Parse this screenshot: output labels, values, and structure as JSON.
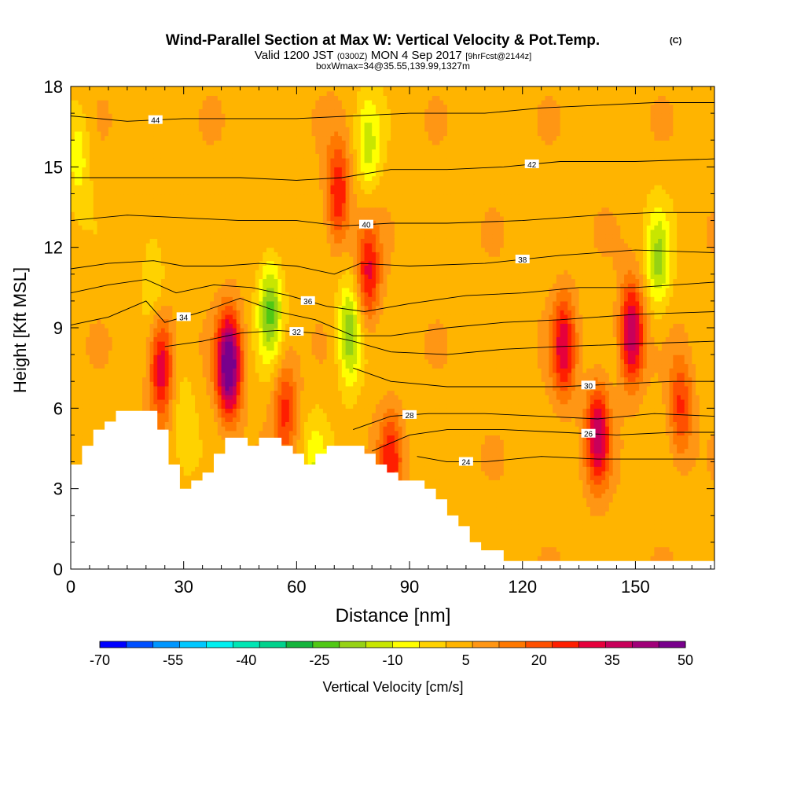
{
  "chart_data": {
    "type": "heatmap",
    "title": "Wind-Parallel Section at Max W: Vertical Velocity & Pot.Temp.",
    "title_mark": "(C)",
    "subtitle": {
      "prefix": "Valid 1200 JST",
      "utc": "(0300Z)",
      "day": "MON 4 Sep 2017",
      "run": "[9hrFcst@2144z]"
    },
    "subtitle2": "boxWmax=34@35.55,139.99,1327m",
    "xlabel": "Distance [nm]",
    "ylabel": "Height [Kft MSL]",
    "xlim": [
      0,
      171
    ],
    "ylim": [
      0,
      18
    ],
    "x_ticks": [
      "0",
      "30",
      "60",
      "90",
      "120",
      "150"
    ],
    "y_ticks": [
      "0",
      "3",
      "6",
      "9",
      "12",
      "15",
      "18"
    ],
    "colorbar": {
      "label": "Vertical Velocity [cm/s]",
      "tick_labels": [
        "-70",
        "-55",
        "-40",
        "-25",
        "-10",
        "5",
        "20",
        "35",
        "50"
      ],
      "colors": [
        "#0000ff",
        "#0050ff",
        "#0096ff",
        "#00c8ff",
        "#00f0f0",
        "#00e6b4",
        "#00d28c",
        "#14b43c",
        "#50c814",
        "#96d214",
        "#c8e600",
        "#ffff00",
        "#ffd200",
        "#ffb400",
        "#ff9614",
        "#ff7800",
        "#ff5000",
        "#ff1e00",
        "#e6003c",
        "#c8005a",
        "#a00078",
        "#78008c"
      ]
    },
    "w_field_cm_s": {
      "background": 4,
      "features": [
        {
          "x": 2,
          "y": 15.5,
          "w": -12
        },
        {
          "x": 22,
          "y": 11.0,
          "w": -10
        },
        {
          "x": 24,
          "y": 7.6,
          "w": 30
        },
        {
          "x": 30,
          "y": 5.5,
          "w": -8
        },
        {
          "x": 42,
          "y": 7.6,
          "w": 50
        },
        {
          "x": 53,
          "y": 9.7,
          "w": -25
        },
        {
          "x": 57,
          "y": 6.0,
          "w": 20
        },
        {
          "x": 65,
          "y": 3.8,
          "w": -12
        },
        {
          "x": 71,
          "y": 14.0,
          "w": 25
        },
        {
          "x": 74,
          "y": 8.8,
          "w": -25
        },
        {
          "x": 79,
          "y": 15.8,
          "w": -15
        },
        {
          "x": 79,
          "y": 11.0,
          "w": 25
        },
        {
          "x": 85,
          "y": 4.0,
          "w": 22
        },
        {
          "x": 131,
          "y": 8.3,
          "w": 28
        },
        {
          "x": 140,
          "y": 5.0,
          "w": 32
        },
        {
          "x": 149,
          "y": 8.8,
          "w": 35
        },
        {
          "x": 156,
          "y": 11.5,
          "w": -20
        },
        {
          "x": 162,
          "y": 6.0,
          "w": 20
        }
      ]
    },
    "theta_contours_C": [
      {
        "label": "24",
        "points": [
          [
            92,
            4.2
          ],
          [
            100,
            4.0
          ],
          [
            110,
            4.0
          ],
          [
            125,
            4.2
          ],
          [
            140,
            4.1
          ],
          [
            155,
            4.1
          ],
          [
            171,
            4.1
          ]
        ]
      },
      {
        "label": "26",
        "points": [
          [
            80,
            4.4
          ],
          [
            90,
            5.0
          ],
          [
            100,
            5.2
          ],
          [
            115,
            5.2
          ],
          [
            130,
            5.1
          ],
          [
            145,
            5.0
          ],
          [
            160,
            5.1
          ],
          [
            171,
            5.1
          ]
        ]
      },
      {
        "label": "28",
        "points": [
          [
            75,
            5.2
          ],
          [
            85,
            5.7
          ],
          [
            95,
            5.8
          ],
          [
            110,
            5.8
          ],
          [
            125,
            5.7
          ],
          [
            140,
            5.6
          ],
          [
            155,
            5.8
          ],
          [
            171,
            5.7
          ]
        ]
      },
      {
        "label": "30",
        "points": [
          [
            75,
            7.5
          ],
          [
            85,
            7.0
          ],
          [
            100,
            6.8
          ],
          [
            115,
            6.8
          ],
          [
            130,
            6.8
          ],
          [
            145,
            6.9
          ],
          [
            160,
            7.0
          ],
          [
            171,
            7.0
          ]
        ]
      },
      {
        "label": "32",
        "points": [
          [
            25,
            8.3
          ],
          [
            35,
            8.5
          ],
          [
            45,
            8.8
          ],
          [
            55,
            8.9
          ],
          [
            65,
            8.8
          ],
          [
            75,
            8.5
          ],
          [
            85,
            8.1
          ],
          [
            100,
            8.0
          ],
          [
            115,
            8.2
          ],
          [
            130,
            8.3
          ],
          [
            150,
            8.4
          ],
          [
            171,
            8.5
          ]
        ]
      },
      {
        "label": "34",
        "points": [
          [
            0,
            9.1
          ],
          [
            10,
            9.4
          ],
          [
            20,
            10.0
          ],
          [
            25,
            9.2
          ],
          [
            35,
            9.6
          ],
          [
            45,
            10.1
          ],
          [
            55,
            9.6
          ],
          [
            65,
            9.3
          ],
          [
            75,
            8.7
          ],
          [
            85,
            8.7
          ],
          [
            100,
            9.0
          ],
          [
            115,
            9.2
          ],
          [
            130,
            9.3
          ],
          [
            150,
            9.5
          ],
          [
            171,
            9.6
          ]
        ]
      },
      {
        "label": "36",
        "points": [
          [
            0,
            10.3
          ],
          [
            10,
            10.6
          ],
          [
            20,
            10.8
          ],
          [
            28,
            10.3
          ],
          [
            38,
            10.6
          ],
          [
            48,
            10.5
          ],
          [
            58,
            10.2
          ],
          [
            68,
            9.8
          ],
          [
            78,
            9.6
          ],
          [
            90,
            9.9
          ],
          [
            105,
            10.2
          ],
          [
            120,
            10.3
          ],
          [
            135,
            10.5
          ],
          [
            150,
            10.5
          ],
          [
            171,
            10.7
          ]
        ]
      },
      {
        "label": "38",
        "points": [
          [
            0,
            11.2
          ],
          [
            10,
            11.4
          ],
          [
            22,
            11.5
          ],
          [
            30,
            11.3
          ],
          [
            40,
            11.3
          ],
          [
            50,
            11.4
          ],
          [
            60,
            11.3
          ],
          [
            70,
            11.0
          ],
          [
            77,
            11.4
          ],
          [
            90,
            11.3
          ],
          [
            110,
            11.4
          ],
          [
            130,
            11.7
          ],
          [
            150,
            11.9
          ],
          [
            171,
            11.8
          ]
        ]
      },
      {
        "label": "40",
        "points": [
          [
            0,
            13.0
          ],
          [
            15,
            13.2
          ],
          [
            30,
            13.1
          ],
          [
            45,
            13.0
          ],
          [
            60,
            13.0
          ],
          [
            72,
            12.8
          ],
          [
            85,
            12.9
          ],
          [
            100,
            12.9
          ],
          [
            120,
            13.0
          ],
          [
            140,
            13.2
          ],
          [
            155,
            13.3
          ],
          [
            171,
            13.3
          ]
        ]
      },
      {
        "label": "42",
        "points": [
          [
            0,
            14.6
          ],
          [
            15,
            14.6
          ],
          [
            30,
            14.6
          ],
          [
            45,
            14.6
          ],
          [
            60,
            14.5
          ],
          [
            72,
            14.6
          ],
          [
            85,
            14.9
          ],
          [
            100,
            14.9
          ],
          [
            115,
            15.0
          ],
          [
            130,
            15.2
          ],
          [
            150,
            15.2
          ],
          [
            171,
            15.3
          ]
        ]
      },
      {
        "label": "44",
        "points": [
          [
            0,
            16.9
          ],
          [
            15,
            16.7
          ],
          [
            30,
            16.8
          ],
          [
            45,
            16.8
          ],
          [
            60,
            16.8
          ],
          [
            75,
            16.9
          ],
          [
            90,
            17.0
          ],
          [
            110,
            17.0
          ],
          [
            125,
            17.2
          ],
          [
            140,
            17.3
          ],
          [
            155,
            17.4
          ],
          [
            171,
            17.4
          ]
        ]
      }
    ],
    "terrain_kft": [
      [
        0,
        3.9
      ],
      [
        3,
        3.9
      ],
      [
        3,
        4.6
      ],
      [
        6,
        4.6
      ],
      [
        6,
        5.2
      ],
      [
        9,
        5.2
      ],
      [
        9,
        5.5
      ],
      [
        12,
        5.5
      ],
      [
        12,
        5.9
      ],
      [
        23,
        5.9
      ],
      [
        23,
        5.2
      ],
      [
        26,
        5.2
      ],
      [
        26,
        3.9
      ],
      [
        29,
        3.9
      ],
      [
        29,
        3.0
      ],
      [
        32,
        3.0
      ],
      [
        32,
        3.3
      ],
      [
        35,
        3.3
      ],
      [
        35,
        3.6
      ],
      [
        38,
        3.6
      ],
      [
        38,
        4.3
      ],
      [
        41,
        4.3
      ],
      [
        41,
        4.9
      ],
      [
        47,
        4.9
      ],
      [
        47,
        4.6
      ],
      [
        50,
        4.6
      ],
      [
        50,
        4.9
      ],
      [
        56,
        4.9
      ],
      [
        56,
        4.6
      ],
      [
        59,
        4.6
      ],
      [
        59,
        4.3
      ],
      [
        62,
        4.3
      ],
      [
        62,
        3.9
      ],
      [
        65,
        3.9
      ],
      [
        65,
        4.3
      ],
      [
        68,
        4.3
      ],
      [
        68,
        4.6
      ],
      [
        78,
        4.6
      ],
      [
        78,
        4.3
      ],
      [
        81,
        4.3
      ],
      [
        81,
        3.9
      ],
      [
        84,
        3.9
      ],
      [
        84,
        3.6
      ],
      [
        87,
        3.6
      ],
      [
        87,
        3.3
      ],
      [
        94,
        3.3
      ],
      [
        94,
        3.0
      ],
      [
        97,
        3.0
      ],
      [
        97,
        2.6
      ],
      [
        100,
        2.6
      ],
      [
        100,
        2.0
      ],
      [
        103,
        2.0
      ],
      [
        103,
        1.6
      ],
      [
        106,
        1.6
      ],
      [
        106,
        1.0
      ],
      [
        109,
        1.0
      ],
      [
        109,
        0.7
      ],
      [
        115,
        0.7
      ],
      [
        115,
        0.3
      ],
      [
        171,
        0.3
      ]
    ]
  }
}
